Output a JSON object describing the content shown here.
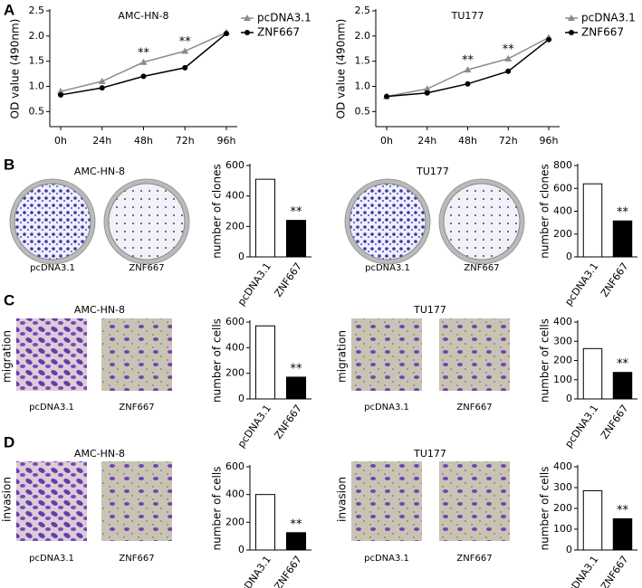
{
  "panel_labels": [
    "A",
    "B",
    "C",
    "D"
  ],
  "photo_groups": [
    {
      "title": "AMC-HN-8",
      "captions": [
        "pcDNA3.1",
        "ZNF667"
      ]
    },
    {
      "title": "TU177",
      "captions": [
        "pcDNA3.1",
        "ZNF667"
      ]
    },
    {
      "title": "AMC-HN-8",
      "side_label": "migration",
      "captions": [
        "pcDNA3.1",
        "ZNF667"
      ]
    },
    {
      "title": "TU177",
      "side_label": "migration",
      "captions": [
        "pcDNA3.1",
        "ZNF667"
      ]
    },
    {
      "title": "AMC-HN-8",
      "side_label": "invasion",
      "captions": [
        "pcDNA3.1",
        "ZNF667"
      ]
    },
    {
      "title": "TU177",
      "side_label": "invasion",
      "captions": [
        "pcDNA3.1",
        "ZNF667"
      ]
    }
  ],
  "chart_data": [
    {
      "type": "line",
      "title": "AMC-HN-8",
      "y_label": "OD value (490nm)",
      "categories": [
        "0h",
        "24h",
        "48h",
        "72h",
        "96h"
      ],
      "series": [
        {
          "name": "pcDNA3.1",
          "color": "#8c8c8c",
          "values": [
            0.9,
            1.1,
            1.48,
            1.7,
            2.07
          ]
        },
        {
          "name": "ZNF667",
          "color": "#000000",
          "values": [
            0.83,
            0.97,
            1.2,
            1.37,
            2.05
          ]
        }
      ],
      "ylim": [
        0.2,
        2.5
      ],
      "yticks": [
        0.5,
        {
          "value": 1,
          "label": "1.0"
        },
        1.5,
        {
          "value": 2,
          "label": "2.0"
        },
        2.5
      ],
      "annotations": [
        {
          "text": "**",
          "at": "48h"
        },
        {
          "text": "**",
          "at": "72h"
        }
      ],
      "legend": "right"
    },
    {
      "type": "line",
      "title": "TU177",
      "y_label": "OD value (490nm)",
      "categories": [
        "0h",
        "24h",
        "48h",
        "72h",
        "96h"
      ],
      "series": [
        {
          "name": "pcDNA3.1",
          "color": "#8c8c8c",
          "values": [
            0.8,
            0.95,
            1.33,
            1.55,
            1.97
          ]
        },
        {
          "name": "ZNF667",
          "color": "#000000",
          "values": [
            0.8,
            0.87,
            1.05,
            1.3,
            1.93
          ]
        }
      ],
      "ylim": [
        0.2,
        2.5
      ],
      "yticks": [
        0.5,
        {
          "value": 1,
          "label": "1.0"
        },
        1.5,
        {
          "value": 2,
          "label": "2.0"
        },
        2.5
      ],
      "annotations": [
        {
          "text": "**",
          "at": "48h"
        },
        {
          "text": "**",
          "at": "72h"
        }
      ],
      "legend": "right"
    },
    {
      "type": "bar",
      "y_label": "number of clones",
      "categories": [
        "pcDNA3.1",
        "ZNF667"
      ],
      "values": [
        510,
        240
      ],
      "colors": [
        "#ffffff",
        "#000000"
      ],
      "ylim": [
        0,
        600
      ],
      "yticks": [
        0,
        200,
        400,
        600
      ],
      "annotations": [
        {
          "text": "**",
          "at": "ZNF667"
        }
      ]
    },
    {
      "type": "bar",
      "y_label": "number of clones",
      "categories": [
        "pcDNA3.1",
        "ZNF667"
      ],
      "values": [
        640,
        315
      ],
      "colors": [
        "#ffffff",
        "#000000"
      ],
      "ylim": [
        0,
        800
      ],
      "yticks": [
        0,
        200,
        400,
        600,
        800
      ],
      "annotations": [
        {
          "text": "**",
          "at": "ZNF667"
        }
      ]
    },
    {
      "type": "bar",
      "y_label": "number of cells",
      "categories": [
        "pcDNA3.1",
        "ZNF667"
      ],
      "values": [
        570,
        170
      ],
      "colors": [
        "#ffffff",
        "#000000"
      ],
      "ylim": [
        0,
        600
      ],
      "yticks": [
        0,
        200,
        400,
        600
      ],
      "annotations": [
        {
          "text": "**",
          "at": "ZNF667"
        }
      ]
    },
    {
      "type": "bar",
      "y_label": "number of cells",
      "categories": [
        "pcDNA3.1",
        "ZNF667"
      ],
      "values": [
        262,
        138
      ],
      "colors": [
        "#ffffff",
        "#000000"
      ],
      "ylim": [
        0,
        400
      ],
      "yticks": [
        0,
        100,
        200,
        300,
        400
      ],
      "annotations": [
        {
          "text": "**",
          "at": "ZNF667"
        }
      ]
    },
    {
      "type": "bar",
      "y_label": "number of cells",
      "categories": [
        "pcDNA3.1",
        "ZNF667"
      ],
      "values": [
        400,
        125
      ],
      "colors": [
        "#ffffff",
        "#000000"
      ],
      "ylim": [
        0,
        600
      ],
      "yticks": [
        0,
        200,
        400,
        600
      ],
      "annotations": [
        {
          "text": "**",
          "at": "ZNF667"
        }
      ]
    },
    {
      "type": "bar",
      "y_label": "number of cells",
      "categories": [
        "pcDNA3.1",
        "ZNF667"
      ],
      "values": [
        285,
        150
      ],
      "colors": [
        "#ffffff",
        "#000000"
      ],
      "ylim": [
        0,
        400
      ],
      "yticks": [
        0,
        100,
        200,
        300,
        400
      ],
      "annotations": [
        {
          "text": "**",
          "at": "ZNF667"
        }
      ]
    }
  ]
}
